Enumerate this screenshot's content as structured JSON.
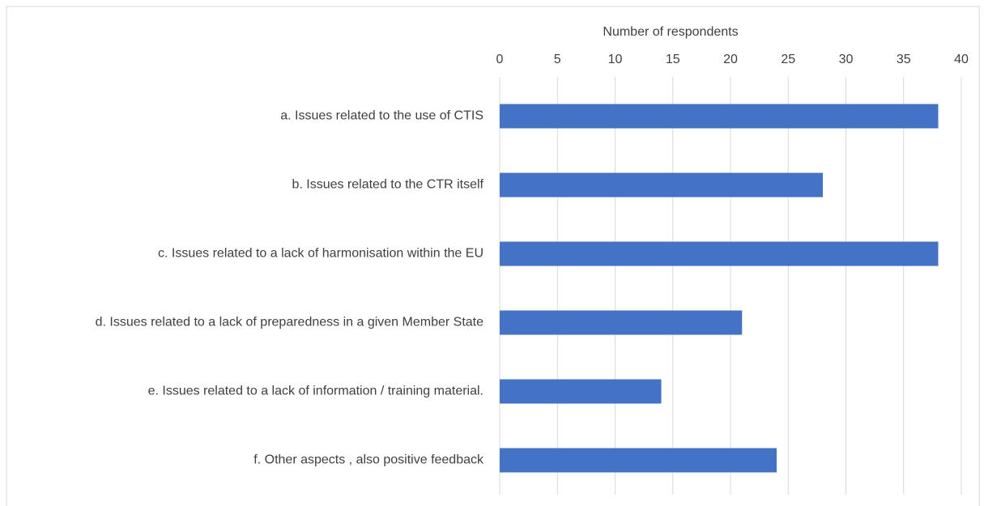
{
  "chart_data": {
    "type": "bar",
    "orientation": "horizontal",
    "xlabel": "Number of respondents",
    "categories": [
      "a. Issues related to the use of CTIS",
      "b. Issues related to the CTR itself",
      "c. Issues related to a lack of harmonisation within the EU",
      "d. Issues related to a lack of preparedness in a given Member State",
      "e. Issues related to a lack of information / training material.",
      "f. Other aspects , also positive feedback"
    ],
    "values": [
      38,
      28,
      38,
      21,
      14,
      24
    ],
    "color": "#4472c4",
    "xlim": [
      0,
      40
    ],
    "xticks": [
      0,
      5,
      10,
      15,
      20,
      25,
      30,
      35,
      40
    ],
    "grid": true
  }
}
